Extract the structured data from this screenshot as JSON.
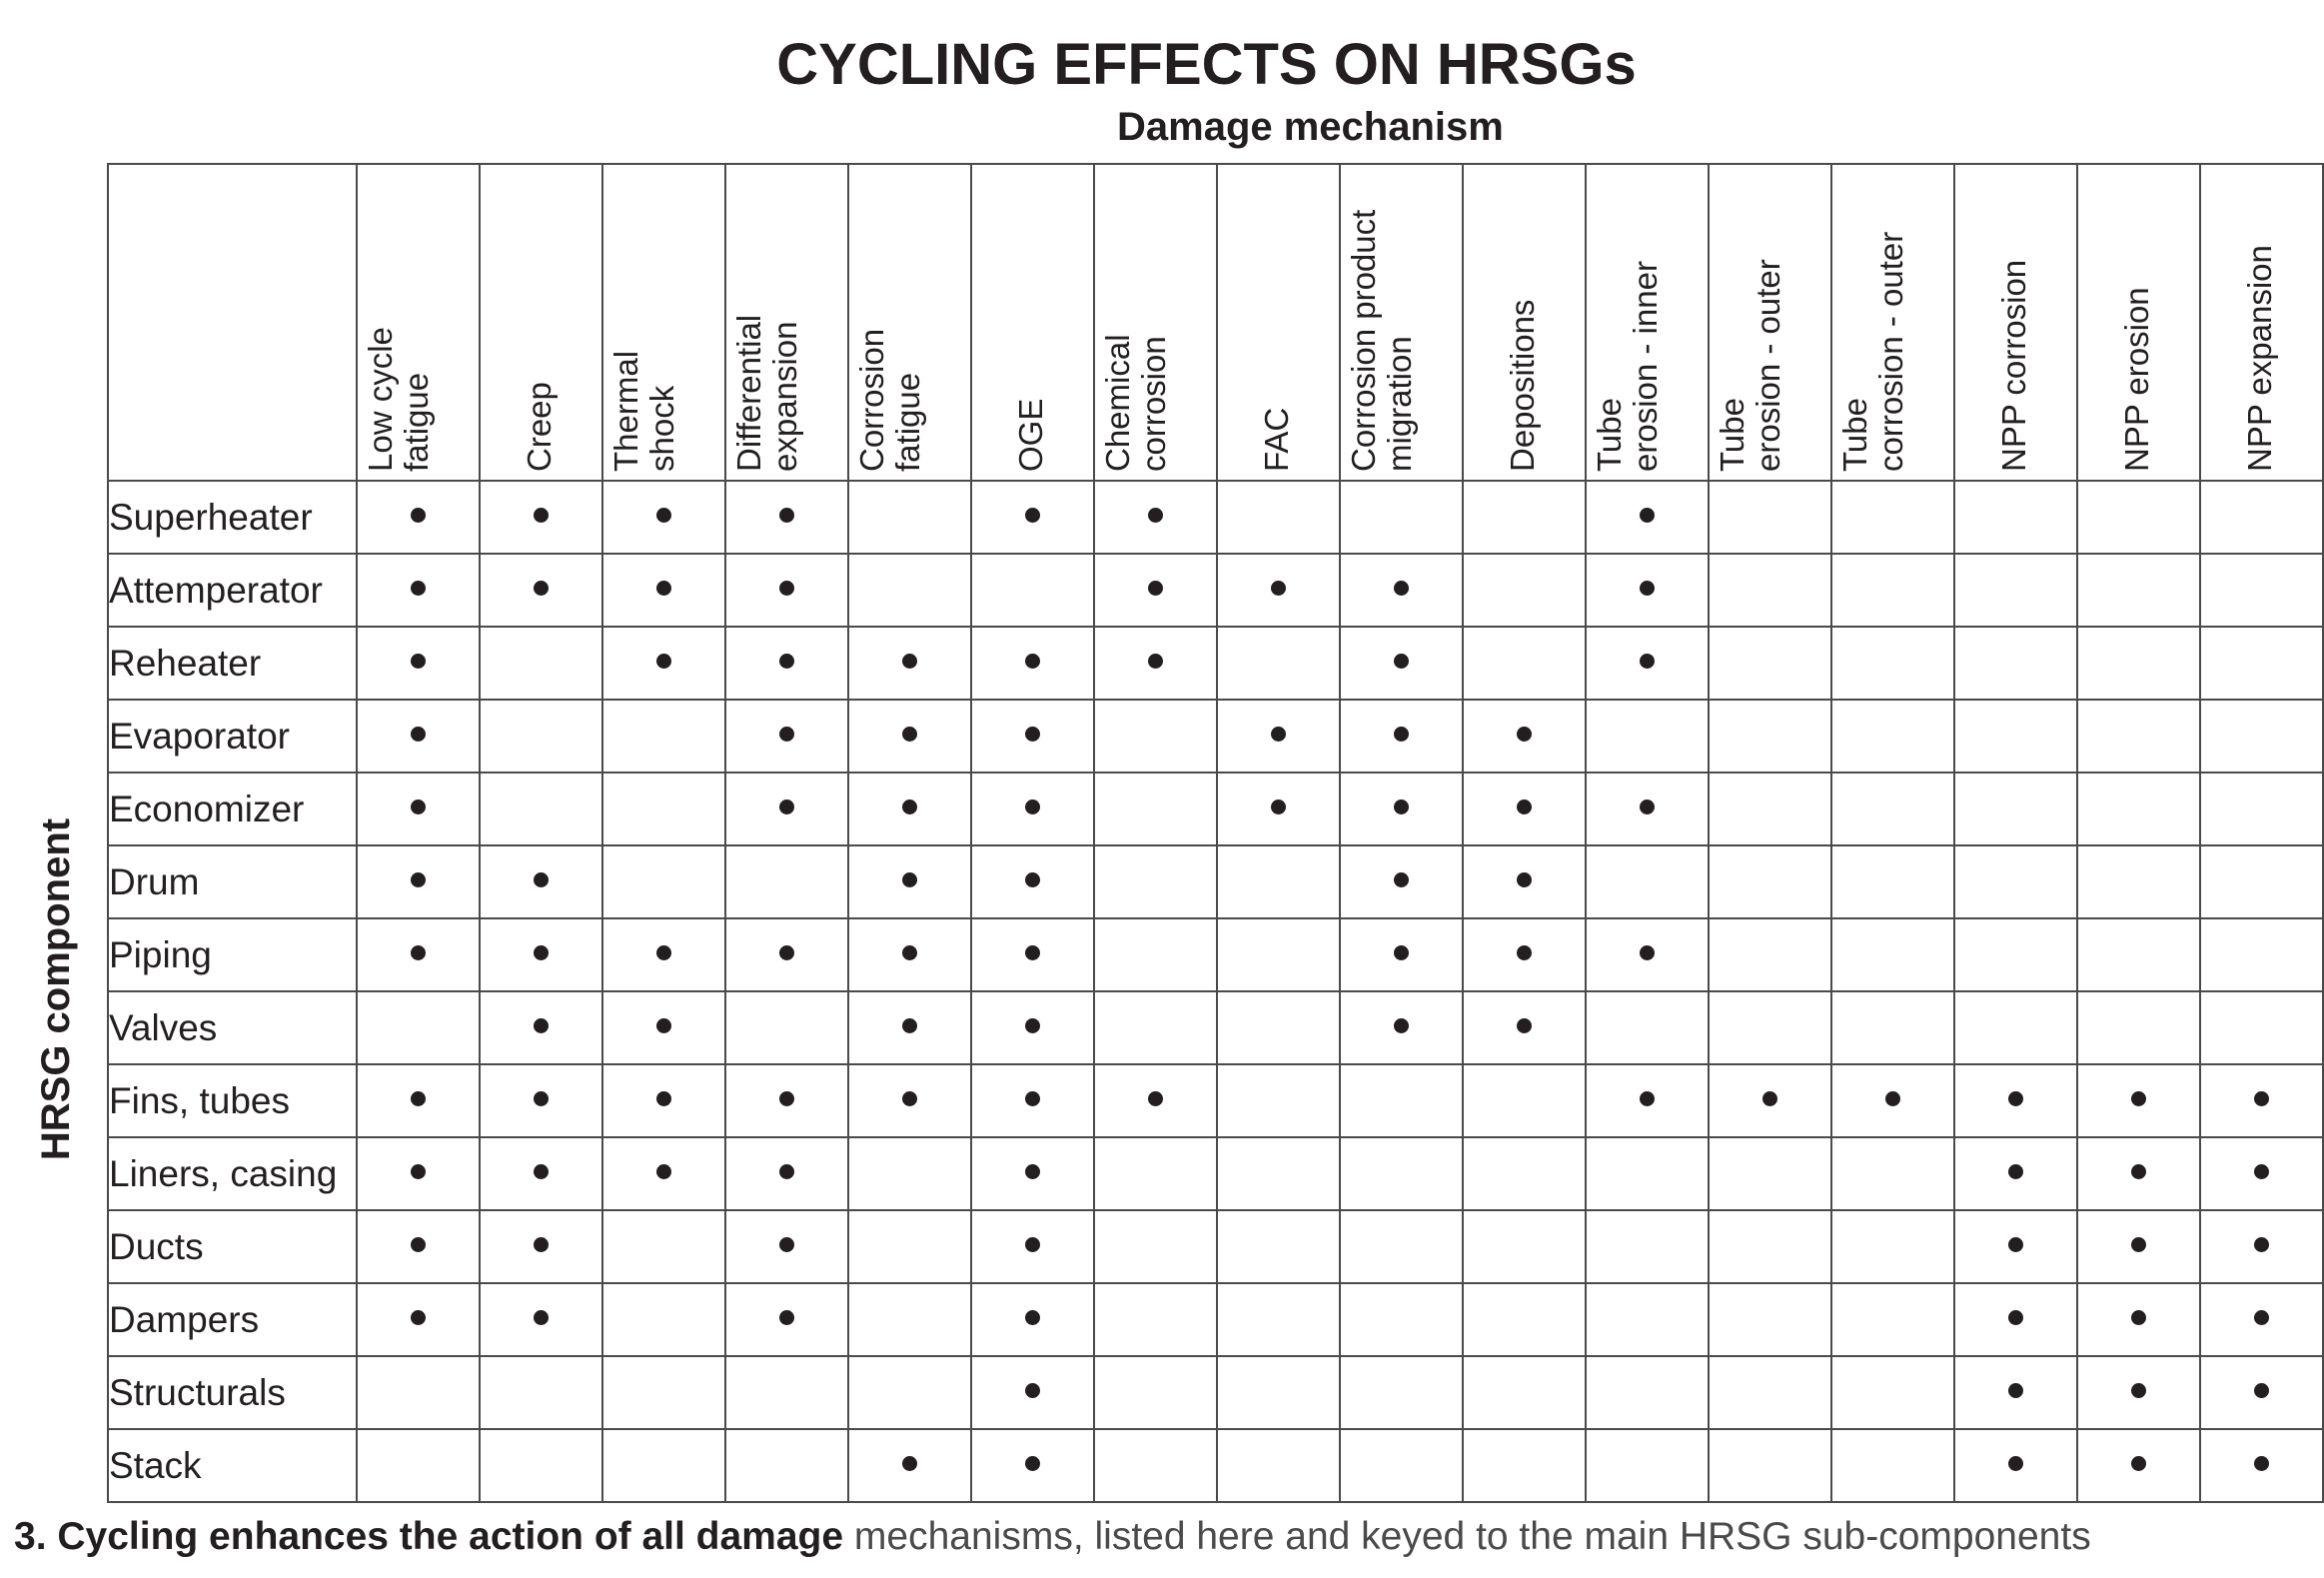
{
  "title": "CYCLING EFFECTS ON HRSGs",
  "subtitle": "Damage mechanism",
  "row_axis_label": "HRSG component",
  "columns": [
    "Low cycle\nfatigue",
    "Creep",
    "Thermal\nshock",
    "Differential\nexpansion",
    "Corrosion\nfatigue",
    "OGE",
    "Chemical\ncorrosion",
    "FAC",
    "Corrosion product\nmigration",
    "Depositions",
    "Tube\nerosion - inner",
    "Tube\nerosion - outer",
    "Tube\ncorrosion - outer",
    "NPP corrosion",
    "NPP erosion",
    "NPP expansion"
  ],
  "rows": [
    {
      "label": "Superheater",
      "marks": [
        1,
        1,
        1,
        1,
        0,
        1,
        1,
        0,
        0,
        0,
        1,
        0,
        0,
        0,
        0,
        0
      ]
    },
    {
      "label": "Attemperator",
      "marks": [
        1,
        1,
        1,
        1,
        0,
        0,
        1,
        1,
        1,
        0,
        1,
        0,
        0,
        0,
        0,
        0
      ]
    },
    {
      "label": "Reheater",
      "marks": [
        1,
        0,
        1,
        1,
        1,
        1,
        1,
        0,
        1,
        0,
        1,
        0,
        0,
        0,
        0,
        0
      ]
    },
    {
      "label": "Evaporator",
      "marks": [
        1,
        0,
        0,
        1,
        1,
        1,
        0,
        1,
        1,
        1,
        0,
        0,
        0,
        0,
        0,
        0
      ]
    },
    {
      "label": "Economizer",
      "marks": [
        1,
        0,
        0,
        1,
        1,
        1,
        0,
        1,
        1,
        1,
        1,
        0,
        0,
        0,
        0,
        0
      ]
    },
    {
      "label": "Drum",
      "marks": [
        1,
        1,
        0,
        0,
        1,
        1,
        0,
        0,
        1,
        1,
        0,
        0,
        0,
        0,
        0,
        0
      ]
    },
    {
      "label": "Piping",
      "marks": [
        1,
        1,
        1,
        1,
        1,
        1,
        0,
        0,
        1,
        1,
        1,
        0,
        0,
        0,
        0,
        0
      ]
    },
    {
      "label": "Valves",
      "marks": [
        0,
        1,
        1,
        0,
        1,
        1,
        0,
        0,
        1,
        1,
        0,
        0,
        0,
        0,
        0,
        0
      ]
    },
    {
      "label": "Fins, tubes",
      "marks": [
        1,
        1,
        1,
        1,
        1,
        1,
        1,
        0,
        0,
        0,
        1,
        1,
        1,
        1,
        1,
        1
      ]
    },
    {
      "label": "Liners, casing",
      "marks": [
        1,
        1,
        1,
        1,
        0,
        1,
        0,
        0,
        0,
        0,
        0,
        0,
        0,
        1,
        1,
        1
      ]
    },
    {
      "label": "Ducts",
      "marks": [
        1,
        1,
        0,
        1,
        0,
        1,
        0,
        0,
        0,
        0,
        0,
        0,
        0,
        1,
        1,
        1
      ]
    },
    {
      "label": "Dampers",
      "marks": [
        1,
        1,
        0,
        1,
        0,
        1,
        0,
        0,
        0,
        0,
        0,
        0,
        0,
        1,
        1,
        1
      ]
    },
    {
      "label": "Structurals",
      "marks": [
        0,
        0,
        0,
        0,
        0,
        1,
        0,
        0,
        0,
        0,
        0,
        0,
        0,
        1,
        1,
        1
      ]
    },
    {
      "label": "Stack",
      "marks": [
        0,
        0,
        0,
        0,
        1,
        1,
        0,
        0,
        0,
        0,
        0,
        0,
        0,
        1,
        1,
        1
      ]
    }
  ],
  "caption": {
    "bold": "3. Cycling enhances the action of all damage",
    "rest": " mechanisms, listed here and keyed to the main HRSG sub-components"
  }
}
